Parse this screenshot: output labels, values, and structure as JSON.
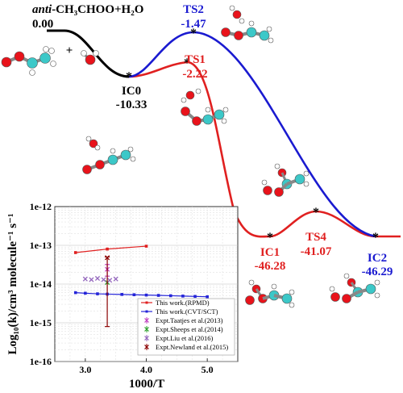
{
  "title": {
    "species_italic": "anti",
    "reaction": "-CH₃CHOO+H₂O"
  },
  "colors": {
    "reactant_path": "#000000",
    "ts1_path": "#e02020",
    "ts2_path": "#1a1ad0",
    "atom_o": "#e8131b",
    "atom_c": "#3cc8c8",
    "atom_h": "#ffffff",
    "rpmd": "#e02020",
    "cvt": "#2424d8",
    "taatjes": "#c040c0",
    "sheeps": "#2ca02c",
    "liu": "#9467bd",
    "newland": "#8b0000"
  },
  "plus_sign": "+",
  "energy_levels": [
    {
      "name": "Reactants",
      "energy": "0.00",
      "color": "#000000"
    },
    {
      "name": "IC0",
      "energy": "-10.33",
      "color": "#000000"
    },
    {
      "name": "TS2",
      "energy": "-1.47",
      "color": "#1a1ad0"
    },
    {
      "name": "TS1",
      "energy": "-2.22",
      "color": "#e02020"
    },
    {
      "name": "IC1",
      "energy": "-46.28",
      "color": "#e02020"
    },
    {
      "name": "TS4",
      "energy": "-41.07",
      "color": "#e02020"
    },
    {
      "name": "IC2",
      "energy": "-46.29",
      "color": "#1a1ad0"
    }
  ],
  "chart_data": {
    "type": "scatter",
    "xlabel": "1000/T",
    "ylabel": "Log₁₀(k)/cm³ molecule⁻¹ s⁻¹",
    "xticks": [
      "3.0",
      "4.0",
      "5.0"
    ],
    "yticks": [
      "1e-12",
      "1e-13",
      "1e-14",
      "1e-15",
      "1e-16"
    ],
    "xlim": [
      2.5,
      5.5
    ],
    "ylim_log10": [
      -16,
      -12
    ],
    "grid": true,
    "legend_position": "bottom-right",
    "series": [
      {
        "name": "This work.(RPMD)",
        "color": "#e02020",
        "marker": "square-line",
        "x": [
          2.84,
          3.36,
          4.0
        ],
        "y": [
          6.5e-14,
          8e-14,
          9.5e-14
        ]
      },
      {
        "name": "This work.(CVT/SCT)",
        "color": "#2424d8",
        "marker": "square-line",
        "x": [
          2.84,
          3.0,
          3.2,
          3.36,
          3.6,
          3.8,
          4.0,
          4.2,
          4.4,
          4.6,
          4.8,
          5.0
        ],
        "y": [
          6e-15,
          5.8e-15,
          5.6e-15,
          5.5e-15,
          5.4e-15,
          5.3e-15,
          5.2e-15,
          5.1e-15,
          5e-15,
          4.9e-15,
          4.8e-15,
          4.7e-15
        ]
      },
      {
        "name": "Expt.Taatjes et al.(2013)",
        "color": "#c040c0",
        "marker": "x",
        "x": [
          3.36
        ],
        "y": [
          2.4e-14
        ],
        "yerr_low": [
          1.6e-14
        ],
        "yerr_high": [
          3.2e-14
        ]
      },
      {
        "name": "Expt.Sheeps et al.(2014)",
        "color": "#2ca02c",
        "marker": "x",
        "x": [
          3.36
        ],
        "y": [
          1.1e-14
        ]
      },
      {
        "name": "Expt.Liu et al.(2016)",
        "color": "#9467bd",
        "marker": "x",
        "x": [
          3.0,
          3.1,
          3.2,
          3.3,
          3.4,
          3.5
        ],
        "y": [
          1.35e-14,
          1.3e-14,
          1.4e-14,
          1.3e-14,
          1.25e-14,
          1.35e-14
        ]
      },
      {
        "name": "Expt.Newland et al.(2015)",
        "color": "#8b0000",
        "marker": "cross",
        "x": [
          3.36
        ],
        "y": [
          4.8e-14
        ],
        "yerr_low": [
          8e-16
        ],
        "yerr_high": [
          5e-14
        ]
      }
    ]
  }
}
